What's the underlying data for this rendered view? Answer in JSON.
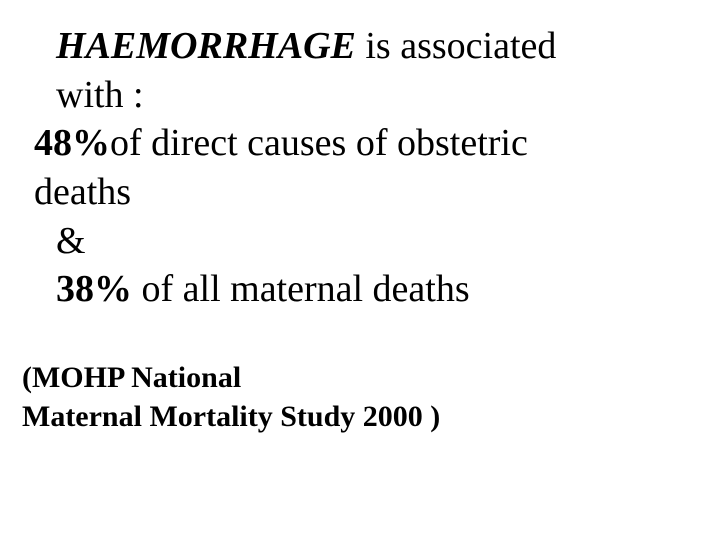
{
  "slide": {
    "title_bold": "HAEMORRHAGE",
    "title_rest": " is associated",
    "line_with": " with :",
    "pct1": "48%",
    "pct1_rest": "of direct causes of obstetric",
    "line_deaths": "deaths",
    "line_amp": " &",
    "pct2": "38%",
    "pct2_rest": " of all maternal deaths",
    "source_line1": "(MOHP National",
    "source_line2": " Maternal Mortality Study 2000 )"
  },
  "colors": {
    "text": "#000000",
    "background": "#ffffff"
  },
  "fonts": {
    "body_family": "Times New Roman",
    "main_size_pt": 30,
    "source_size_pt": 24
  }
}
